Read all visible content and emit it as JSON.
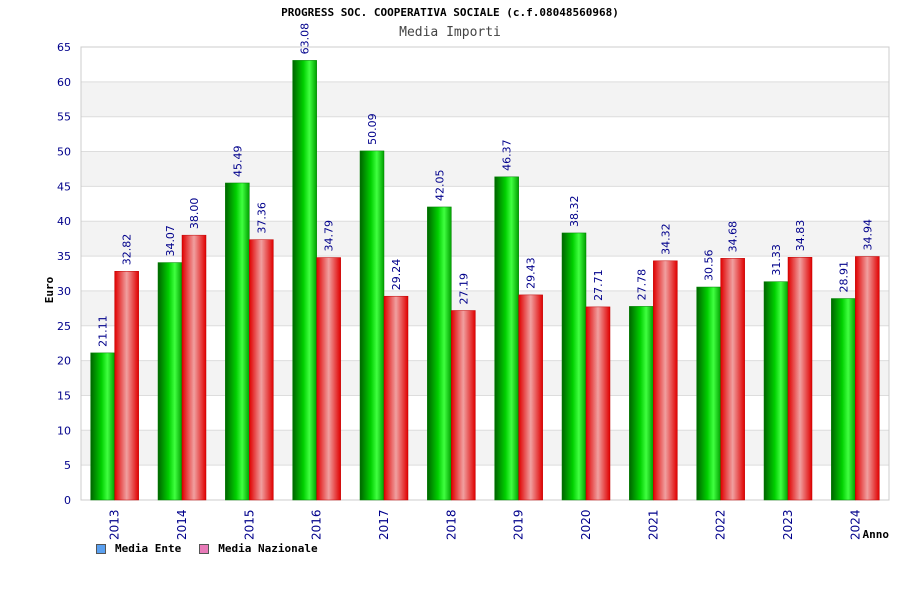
{
  "header": {
    "title": "PROGRESS SOC. COOPERATIVA SOCIALE (c.f.08048560968)",
    "subtitle": "Media Importi"
  },
  "colors": {
    "ente": "#00b000",
    "nazionale": "#f01818",
    "ente_legend": "#5aa0f0",
    "nazionale_legend": "#e87ab8",
    "axis_text": "#00008b",
    "band": "#f3f3f3",
    "grid": "#dddddd"
  },
  "legend": [
    {
      "label": "Media Ente",
      "color_key": "ente_legend"
    },
    {
      "label": "Media Nazionale",
      "color_key": "nazionale_legend"
    }
  ],
  "chart_data": {
    "type": "bar",
    "categories": [
      "2013",
      "2014",
      "2015",
      "2016",
      "2017",
      "2018",
      "2019",
      "2020",
      "2021",
      "2022",
      "2023",
      "2024"
    ],
    "series": [
      {
        "name": "Media Ente",
        "values": [
          21.11,
          34.07,
          45.49,
          63.08,
          50.09,
          42.05,
          46.37,
          38.32,
          27.78,
          30.56,
          31.33,
          28.91
        ]
      },
      {
        "name": "Media Nazionale",
        "values": [
          32.82,
          38.0,
          37.36,
          34.79,
          29.24,
          27.19,
          29.43,
          27.71,
          34.32,
          34.68,
          34.83,
          34.94
        ]
      }
    ],
    "data_labels": [
      [
        "21.11",
        "34.07",
        "45.49",
        "63.08",
        "50.09",
        "42.05",
        "46.37",
        "38.32",
        "27.78",
        "30.56",
        "31.33",
        "28.91"
      ],
      [
        "32.82",
        "38.00",
        "37.36",
        "34.79",
        "29.24",
        "27.19",
        "29.43",
        "27.71",
        "34.32",
        "34.68",
        "34.83",
        "34.94"
      ]
    ],
    "xlabel": "Anno",
    "ylabel": "Euro",
    "ylim": [
      0,
      65
    ],
    "yticks": [
      0,
      5,
      10,
      15,
      20,
      25,
      30,
      35,
      40,
      45,
      50,
      55,
      60,
      65
    ],
    "grid": true,
    "legend_position": "bottom-left"
  }
}
